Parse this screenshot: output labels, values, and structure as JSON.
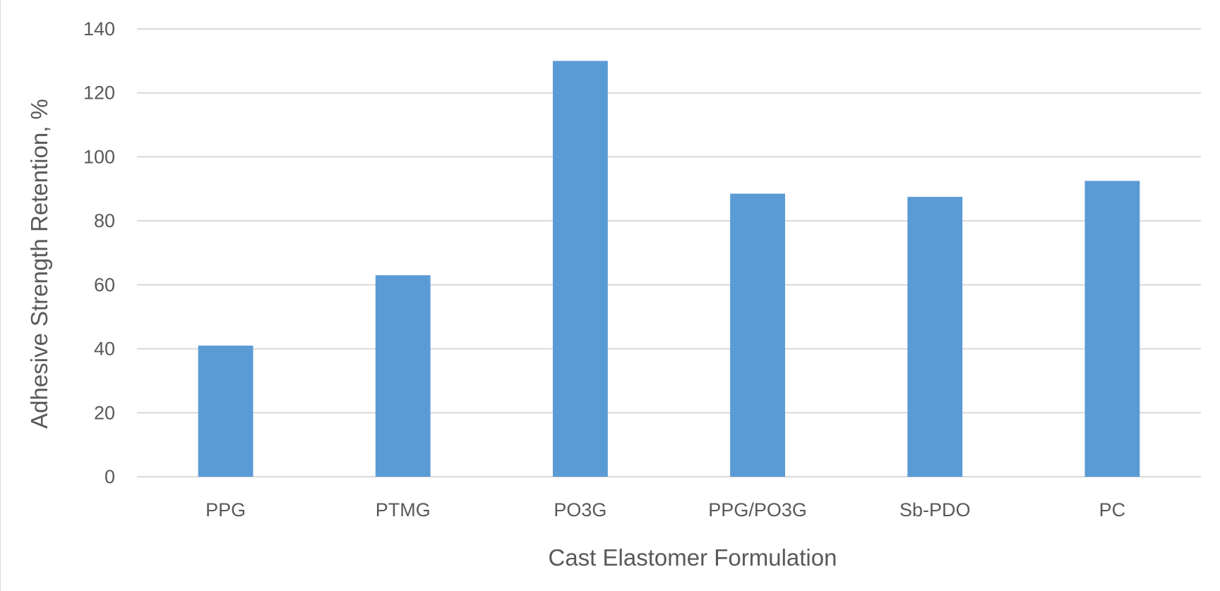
{
  "chart_data": {
    "type": "bar",
    "title": "",
    "xlabel": "Cast Elastomer Formulation",
    "ylabel": "Adhesive Strength Retention, %",
    "categories": [
      "PPG",
      "PTMG",
      "PO3G",
      "PPG/PO3G",
      "Sb-PDO",
      "PC"
    ],
    "values": [
      41,
      63,
      130,
      88.5,
      87.5,
      92.5
    ],
    "ylim": [
      0,
      140
    ],
    "yticks": [
      "0",
      "20",
      "40",
      "60",
      "80",
      "100",
      "120",
      "140"
    ],
    "grid": true,
    "legend": "none",
    "bar_color": "#5b9bd5"
  }
}
